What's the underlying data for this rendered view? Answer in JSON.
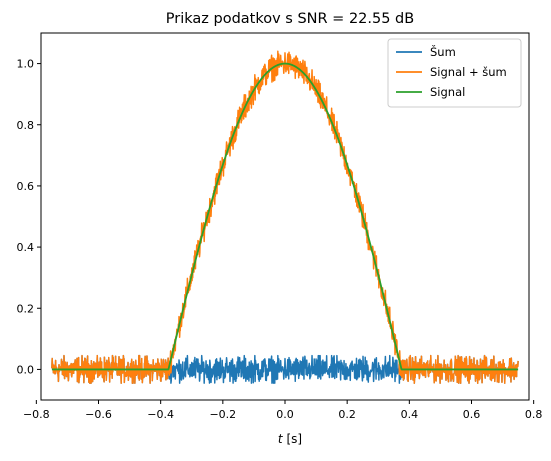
{
  "chart_data": {
    "type": "line",
    "title": "Prikaz podatkov s SNR = 22.55 dB",
    "xlabel": "t [s]",
    "xlabel_italic_part": "t",
    "xlabel_unit_part": " [s]",
    "ylabel": "",
    "xlim": [
      -0.785,
      0.785
    ],
    "ylim": [
      -0.1,
      1.1
    ],
    "xticks": [
      -0.8,
      -0.6,
      -0.4,
      -0.2,
      0.0,
      0.2,
      0.4,
      0.6,
      0.8
    ],
    "xtick_labels": [
      "−0.8",
      "−0.6",
      "−0.4",
      "−0.2",
      "0.0",
      "0.2",
      "0.4",
      "0.6",
      "0.8"
    ],
    "yticks": [
      0.0,
      0.2,
      0.4,
      0.6,
      0.8,
      1.0
    ],
    "ytick_labels": [
      "0.0",
      "0.2",
      "0.4",
      "0.6",
      "0.8",
      "1.0"
    ],
    "grid": false,
    "legend_position": "top-right",
    "x_range": [
      -0.75,
      0.75
    ],
    "signal_support": [
      -0.375,
      0.375
    ],
    "noise_amplitude": 0.045,
    "signal_peak": 1.0,
    "signal_shape": "cos(pi*t/0.75) inside support, 0 outside",
    "series": [
      {
        "name": "Šum",
        "color": "#1f77b4",
        "description": "noise only, values within about ±0.045 around 0"
      },
      {
        "name": "Signal + šum",
        "color": "#ff7f0e",
        "description": "signal plus noise"
      },
      {
        "name": "Signal",
        "color": "#2ca02c",
        "description": "clean signal, 0 outside [-0.375, 0.375], peak 1.0 at t = 0"
      }
    ]
  }
}
